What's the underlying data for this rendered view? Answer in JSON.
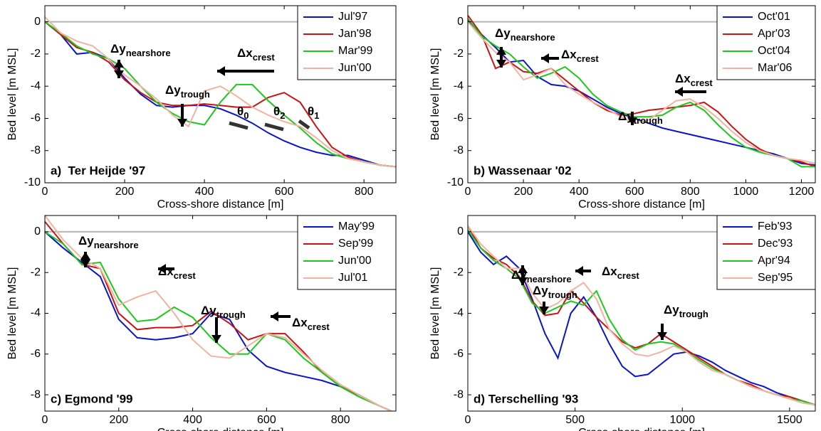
{
  "chart_data": [
    {
      "type": "line",
      "title": "a)  Ter Heijde '97",
      "xlabel": "Cross-shore distance [m]",
      "ylabel": "Bed level [m MSL]",
      "x": [
        0,
        40,
        80,
        120,
        160,
        200,
        240,
        280,
        320,
        360,
        400,
        440,
        480,
        520,
        560,
        600,
        640,
        680,
        720,
        760,
        800,
        840,
        880
      ],
      "series": [
        {
          "name": "Jul'97",
          "color": "#0a14c8",
          "values": [
            0,
            -0.8,
            -2.0,
            -1.9,
            -2.3,
            -3.5,
            -4.5,
            -5.2,
            -5.3,
            -5.2,
            -5.2,
            -5.4,
            -5.8,
            -6.3,
            -6.9,
            -7.4,
            -7.8,
            -8.1,
            -8.3,
            -8.3,
            -8.6,
            -8.9,
            -9.0
          ]
        },
        {
          "name": "Jan'98",
          "color": "#c81414",
          "values": [
            0,
            -0.8,
            -1.6,
            -1.9,
            -2.5,
            -3.6,
            -4.4,
            -5.0,
            -5.2,
            -5.2,
            -5.1,
            -5.2,
            -5.3,
            -5.3,
            -4.7,
            -4.4,
            -5.0,
            -6.5,
            -7.8,
            -8.4,
            -8.7,
            -8.9,
            -9.0
          ]
        },
        {
          "name": "Mar'99",
          "color": "#1ec81e",
          "values": [
            0,
            -0.7,
            -1.5,
            -2.0,
            -2.3,
            -2.9,
            -4.0,
            -5.0,
            -5.7,
            -6.2,
            -6.4,
            -5.0,
            -3.9,
            -3.9,
            -4.9,
            -5.8,
            -6.6,
            -7.5,
            -8.2,
            -8.5,
            -8.7,
            -8.9,
            -9.0
          ]
        },
        {
          "name": "Jun'00",
          "color": "#f0b4a0",
          "values": [
            0.3,
            -0.7,
            -1.2,
            -1.5,
            -2.3,
            -3.3,
            -4.0,
            -4.8,
            -5.8,
            -6.5,
            -4.3,
            -4.0,
            -4.6,
            -5.3,
            -5.8,
            -6.2,
            -6.5,
            -7.2,
            -8.0,
            -8.5,
            -8.7,
            -8.9,
            -9.0
          ]
        }
      ],
      "xlim": [
        0,
        880
      ],
      "xticks": [
        0,
        200,
        400,
        600,
        800
      ],
      "ylim": [
        -10,
        1
      ],
      "yticks": [
        0,
        -2,
        -4,
        -6,
        -8,
        -10
      ],
      "zero_line": true,
      "legend": "upper-right",
      "annotations": [
        {
          "main": "Δy",
          "sub": "nearshore"
        },
        {
          "main": "Δx",
          "sub": "crest"
        },
        {
          "main": "Δy",
          "sub": "trough"
        },
        {
          "main": "θ",
          "sub": "0"
        },
        {
          "main": "θ",
          "sub": "2"
        },
        {
          "main": "θ",
          "sub": "1"
        }
      ]
    },
    {
      "type": "line",
      "title": "b) Wassenaar '02",
      "xlabel": "Cross-shore distance [m]",
      "ylabel": "Bed level [m MSL]",
      "x": [
        0,
        50,
        100,
        150,
        200,
        250,
        300,
        350,
        400,
        450,
        500,
        550,
        600,
        650,
        700,
        750,
        800,
        850,
        900,
        950,
        1000,
        1050,
        1100,
        1150,
        1200,
        1250
      ],
      "series": [
        {
          "name": "Oct'01",
          "color": "#0a14c8",
          "values": [
            0.1,
            -0.8,
            -1.6,
            -2.5,
            -2.4,
            -3.4,
            -3.9,
            -4.0,
            -4.3,
            -4.8,
            -5.3,
            -5.7,
            -6.0,
            -6.3,
            -6.6,
            -6.8,
            -7.0,
            -7.2,
            -7.4,
            -7.6,
            -7.8,
            -8.0,
            -8.2,
            -8.5,
            -8.8,
            -8.9
          ]
        },
        {
          "name": "Apr'03",
          "color": "#c81414",
          "values": [
            0.4,
            -0.8,
            -2.9,
            -2.5,
            -3.1,
            -3.2,
            -2.9,
            -3.6,
            -4.3,
            -5.0,
            -5.5,
            -5.8,
            -5.7,
            -5.5,
            -5.4,
            -5.3,
            -5.2,
            -5.0,
            -5.6,
            -6.5,
            -7.3,
            -7.9,
            -8.3,
            -8.5,
            -8.7,
            -9.0
          ]
        },
        {
          "name": "Oct'04",
          "color": "#1ec81e",
          "values": [
            0.2,
            -0.9,
            -1.5,
            -2.0,
            -2.8,
            -3.5,
            -3.2,
            -2.8,
            -3.5,
            -4.5,
            -5.2,
            -5.6,
            -5.9,
            -5.9,
            -5.8,
            -5.3,
            -5.0,
            -5.5,
            -6.4,
            -7.2,
            -7.8,
            -8.1,
            -8.3,
            -8.5,
            -9.0,
            -9.0
          ]
        },
        {
          "name": "Mar'06",
          "color": "#f0b4a0",
          "values": [
            0,
            -1.0,
            -1.9,
            -2.5,
            -3.6,
            -3.3,
            -2.9,
            -3.9,
            -4.5,
            -5.0,
            -5.4,
            -5.9,
            -6.3,
            -6.1,
            -5.5,
            -4.9,
            -4.8,
            -5.3,
            -6.0,
            -6.8,
            -7.5,
            -8.0,
            -8.3,
            -8.5,
            -8.6,
            -8.8
          ]
        }
      ],
      "xlim": [
        0,
        1250
      ],
      "xticks": [
        0,
        200,
        400,
        600,
        800,
        1000,
        1200
      ],
      "ylim": [
        -10,
        1
      ],
      "yticks": [
        0,
        -2,
        -4,
        -6,
        -8,
        -10
      ],
      "zero_line": true,
      "legend": "upper-right",
      "annotations": [
        {
          "main": "Δy",
          "sub": "nearshore"
        },
        {
          "main": "Δx",
          "sub": "crest"
        },
        {
          "main": "Δy",
          "sub": "trough"
        },
        {
          "main": "Δx",
          "sub": "crest"
        }
      ]
    },
    {
      "type": "line",
      "title": "c) Egmond '99",
      "xlabel": "Cross-shore distance [m]",
      "ylabel": "Bed level [m MSL]",
      "x": [
        0,
        50,
        100,
        150,
        200,
        250,
        300,
        350,
        400,
        450,
        500,
        550,
        600,
        650,
        700,
        750,
        800,
        850,
        900,
        950
      ],
      "series": [
        {
          "name": "May'99",
          "color": "#0a14c8",
          "values": [
            0,
            -0.8,
            -1.5,
            -2.2,
            -4.3,
            -5.2,
            -5.3,
            -5.2,
            -5.0,
            -4.0,
            -4.3,
            -5.8,
            -6.6,
            -6.9,
            -7.1,
            -7.3,
            -7.6,
            -8.0,
            -8.5,
            -8.9
          ]
        },
        {
          "name": "Sep'99",
          "color": "#c81414",
          "values": [
            0.5,
            -0.6,
            -1.6,
            -1.8,
            -4.0,
            -4.8,
            -4.7,
            -4.7,
            -4.6,
            -3.9,
            -4.5,
            -5.3,
            -5.0,
            -5.0,
            -5.9,
            -6.9,
            -7.6,
            -8.0,
            -8.5,
            -8.9
          ]
        },
        {
          "name": "Jun'00",
          "color": "#1ec81e",
          "values": [
            0,
            -0.6,
            -1.6,
            -1.5,
            -3.3,
            -4.4,
            -4.3,
            -3.7,
            -4.2,
            -5.2,
            -6.0,
            -6.0,
            -5.0,
            -5.3,
            -6.2,
            -6.9,
            -7.6,
            -8.1,
            -8.5,
            -8.9
          ]
        },
        {
          "name": "Jul'01",
          "color": "#f0b4a0",
          "values": [
            0.8,
            -0.4,
            -1.3,
            -1.8,
            -3.6,
            -3.2,
            -2.9,
            -4.0,
            -5.3,
            -6.1,
            -6.2,
            -5.6,
            -5.0,
            -5.2,
            -6.0,
            -6.8,
            -7.5,
            -8.0,
            -8.5,
            -8.9
          ]
        }
      ],
      "xlim": [
        0,
        950
      ],
      "xticks": [
        0,
        200,
        400,
        600,
        800
      ],
      "ylim": [
        -8.8,
        0.8
      ],
      "yticks": [
        0,
        -2,
        -4,
        -6,
        -8
      ],
      "zero_line": true,
      "legend": "upper-right",
      "annotations": [
        {
          "main": "Δy",
          "sub": "nearshore"
        },
        {
          "main": "Δx",
          "sub": "crest"
        },
        {
          "main": "Δy",
          "sub": "trough"
        },
        {
          "main": "Δx",
          "sub": "crest"
        }
      ]
    },
    {
      "type": "line",
      "title": "d) Terschelling '93",
      "xlabel": "Cross-shore distance [m]",
      "ylabel": "Bed level [m MSL]",
      "x": [
        0,
        60,
        120,
        180,
        240,
        300,
        360,
        420,
        480,
        540,
        600,
        660,
        720,
        780,
        840,
        900,
        960,
        1020,
        1080,
        1140,
        1200,
        1260,
        1320,
        1380,
        1440,
        1500,
        1560,
        1620
      ],
      "series": [
        {
          "name": "Feb'93",
          "color": "#0a14c8",
          "values": [
            0,
            -1.0,
            -1.6,
            -1.2,
            -1.8,
            -3.3,
            -5.0,
            -6.2,
            -4.0,
            -3.2,
            -4.2,
            -5.5,
            -6.6,
            -7.1,
            -7.0,
            -6.5,
            -6.0,
            -5.9,
            -6.1,
            -6.4,
            -6.8,
            -7.1,
            -7.4,
            -7.6,
            -7.9,
            -8.1,
            -8.3,
            -8.5
          ]
        },
        {
          "name": "Dec'93",
          "color": "#c81414",
          "values": [
            0.3,
            -0.8,
            -1.3,
            -1.6,
            -2.2,
            -3.4,
            -4.1,
            -4.0,
            -2.9,
            -3.5,
            -4.2,
            -4.8,
            -5.4,
            -5.7,
            -5.5,
            -5.0,
            -5.4,
            -5.8,
            -6.2,
            -6.6,
            -7.0,
            -7.3,
            -7.5,
            -7.8,
            -8.0,
            -8.1,
            -8.3,
            -8.5
          ]
        },
        {
          "name": "Apr'94",
          "color": "#1ec81e",
          "values": [
            0.1,
            -0.8,
            -1.4,
            -1.8,
            -2.3,
            -3.5,
            -4.0,
            -3.7,
            -3.4,
            -3.6,
            -2.9,
            -4.3,
            -5.3,
            -5.8,
            -5.5,
            -5.4,
            -5.5,
            -5.9,
            -6.3,
            -6.7,
            -7.0,
            -7.3,
            -7.6,
            -7.8,
            -8.0,
            -8.2,
            -8.3,
            -8.5
          ]
        },
        {
          "name": "Sep'95",
          "color": "#f0b4a0",
          "values": [
            0.3,
            -0.6,
            -1.2,
            -1.8,
            -1.8,
            -3.0,
            -3.8,
            -3.5,
            -2.9,
            -2.5,
            -3.3,
            -4.8,
            -5.5,
            -6.0,
            -6.1,
            -5.9,
            -5.6,
            -5.9,
            -6.4,
            -6.8,
            -7.0,
            -7.3,
            -7.6,
            -7.8,
            -8.0,
            -8.2,
            -8.4,
            -8.5
          ]
        }
      ],
      "xlim": [
        0,
        1620
      ],
      "xticks": [
        0,
        500,
        1000,
        1500
      ],
      "ylim": [
        -8.8,
        0.8
      ],
      "yticks": [
        0,
        -2,
        -4,
        -6,
        -8
      ],
      "zero_line": true,
      "legend": "upper-right",
      "annotations": [
        {
          "main": "Δy",
          "sub": "nearshore"
        },
        {
          "main": "Δx",
          "sub": "crest"
        },
        {
          "main": "Δy",
          "sub": "trough"
        },
        {
          "main": "Δy",
          "sub": "trough"
        }
      ]
    }
  ]
}
